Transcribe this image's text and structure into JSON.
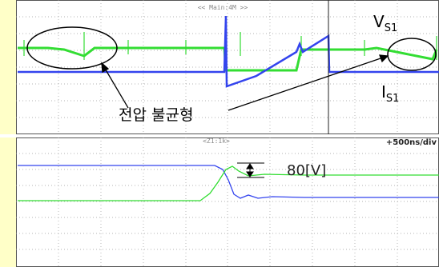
{
  "top_panel": {
    "header": "<< Main:4M >>",
    "labels": {
      "voltage": {
        "main": "V",
        "sub": "S1"
      },
      "current": {
        "main": "I",
        "sub": "S1"
      }
    },
    "annotation": "전압 불균형"
  },
  "bottom_panel": {
    "header": "<Z1:1k>",
    "timebase": "+500ns/div",
    "annotation": "80[V]"
  }
}
